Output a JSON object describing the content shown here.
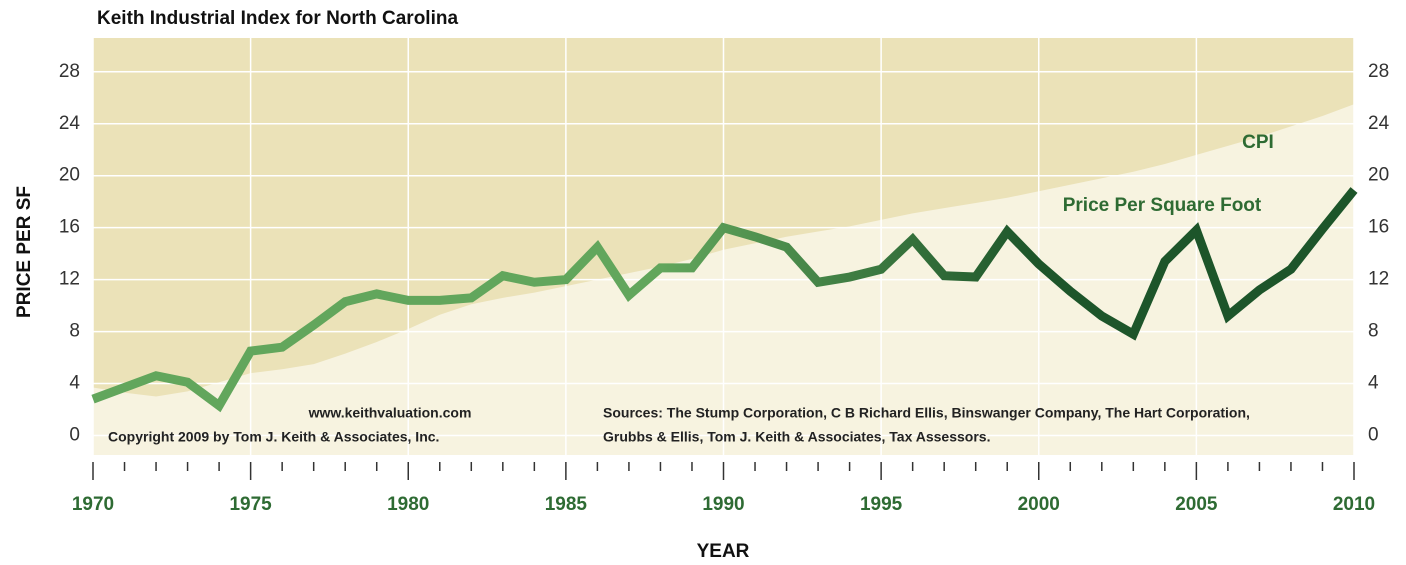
{
  "chart_data": {
    "type": "line",
    "title": "Keith Industrial Index for North Carolina",
    "x_label": "YEAR",
    "y_label": "PRICE PER SF",
    "x": [
      1970,
      1971,
      1972,
      1973,
      1974,
      1975,
      1976,
      1977,
      1978,
      1979,
      1980,
      1981,
      1982,
      1983,
      1984,
      1985,
      1986,
      1987,
      1988,
      1989,
      1990,
      1991,
      1992,
      1993,
      1994,
      1995,
      1996,
      1997,
      1998,
      1999,
      2000,
      2001,
      2002,
      2003,
      2004,
      2005,
      2006,
      2007,
      2008,
      2009,
      2010
    ],
    "series": [
      {
        "name": "CPI",
        "color": "#f7f3e0",
        "values": [
          3.7,
          3.3,
          3.0,
          3.4,
          4.1,
          4.8,
          5.1,
          5.5,
          6.3,
          7.2,
          8.2,
          9.3,
          10.1,
          10.6,
          11.0,
          11.5,
          12.0,
          12.5,
          13.0,
          13.6,
          14.3,
          14.8,
          15.3,
          15.7,
          16.1,
          16.6,
          17.1,
          17.5,
          17.9,
          18.3,
          18.8,
          19.3,
          19.8,
          20.3,
          20.9,
          21.6,
          22.3,
          23.0,
          23.8,
          24.6,
          25.5
        ]
      },
      {
        "name": "Price Per Square Foot",
        "color": "#2e6b33",
        "gradient": [
          "#62a65c",
          "#1d552a"
        ],
        "values": [
          2.8,
          3.7,
          4.6,
          4.1,
          2.3,
          6.5,
          6.8,
          8.5,
          10.3,
          10.9,
          10.4,
          10.4,
          10.6,
          12.3,
          11.8,
          12.0,
          14.5,
          10.8,
          12.9,
          12.9,
          16.0,
          15.3,
          14.5,
          11.8,
          12.2,
          12.8,
          15.1,
          12.3,
          12.2,
          15.7,
          13.2,
          11.1,
          9.2,
          7.8,
          13.4,
          15.8,
          9.2,
          11.2,
          12.8,
          15.9,
          18.9
        ]
      }
    ],
    "background_color": "#ebe2b8",
    "xlim": [
      1970,
      2010
    ],
    "xticks": [
      1970,
      1975,
      1980,
      1985,
      1990,
      1995,
      2000,
      2005,
      2010
    ],
    "xminorticks": [
      1971,
      1972,
      1973,
      1974,
      1976,
      1977,
      1978,
      1979,
      1981,
      1982,
      1983,
      1984,
      1986,
      1987,
      1988,
      1989,
      1991,
      1992,
      1993,
      1994,
      1996,
      1997,
      1998,
      1999,
      2001,
      2002,
      2003,
      2004,
      2006,
      2007,
      2008,
      2009
    ],
    "ylim": [
      -1.5,
      30.6
    ],
    "yticks": [
      0,
      4,
      8,
      12,
      16,
      20,
      24,
      28
    ],
    "grid": true,
    "annotations": [
      "CPI",
      "Price Per Square Foot",
      "www.keithvaluation.com",
      "Copyright  2009 by Tom J. Keith & Associates, Inc.",
      "Sources: The Stump Corporation, C B Richard Ellis, Binswanger Company, The Hart Corporation,",
      "Grubbs & Ellis, Tom J. Keith & Associates, Tax Assessors."
    ]
  }
}
